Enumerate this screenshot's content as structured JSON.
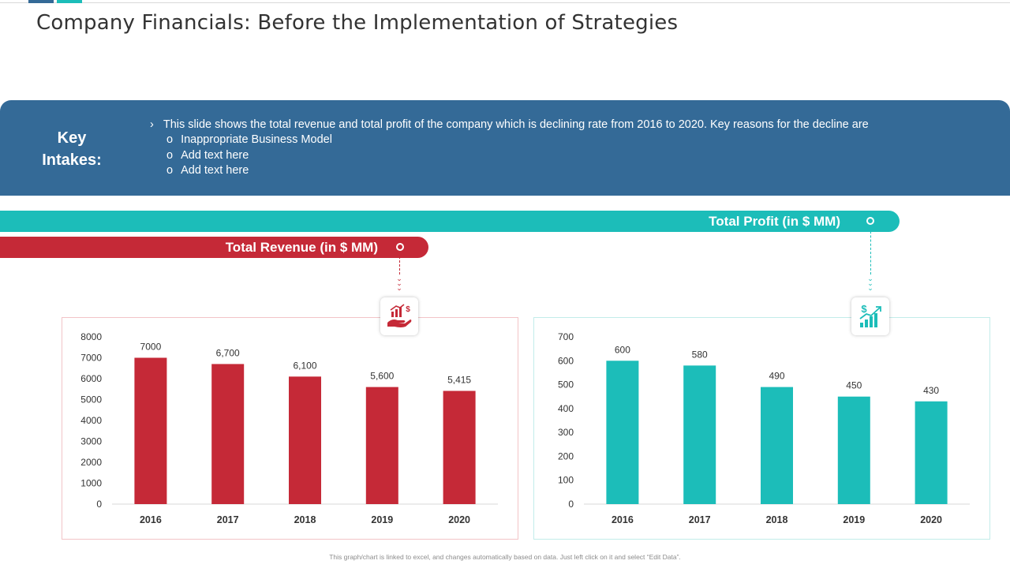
{
  "title": "Company Financials: Before the Implementation of Strategies",
  "key_intakes": {
    "heading_line1": "Key",
    "heading_line2": "Intakes:",
    "bullet_marker": "›",
    "sub_marker": "o",
    "main_point": "This slide shows the total revenue and total profit of the company which is declining rate from 2016 to 2020. Key reasons for the decline are",
    "sub_points": [
      "Inappropriate Business Model",
      "Add text here",
      "Add text here"
    ]
  },
  "bands": {
    "profit_label": "Total Profit (in $ MM)",
    "revenue_label": "Total Revenue (in $ MM)"
  },
  "colors": {
    "blue": "#346a97",
    "teal": "#1cbdb9",
    "red": "#c52937"
  },
  "icons": {
    "revenue": "hand-money-chart-icon",
    "profit": "dollar-growth-chart-icon"
  },
  "chart_data": [
    {
      "type": "bar",
      "title": "Total Revenue (in $ MM)",
      "categories": [
        "2016",
        "2017",
        "2018",
        "2019",
        "2020"
      ],
      "values": [
        7000,
        6700,
        6100,
        5600,
        5415
      ],
      "value_labels": [
        "7000",
        "6,700",
        "6,100",
        "5,600",
        "5,415"
      ],
      "ylim": [
        0,
        8000
      ],
      "yticks": [
        0,
        1000,
        2000,
        3000,
        4000,
        5000,
        6000,
        7000,
        8000
      ],
      "color": "#c52937",
      "xlabel": "",
      "ylabel": ""
    },
    {
      "type": "bar",
      "title": "Total Profit (in $ MM)",
      "categories": [
        "2016",
        "2017",
        "2018",
        "2019",
        "2020"
      ],
      "values": [
        600,
        580,
        490,
        450,
        430
      ],
      "value_labels": [
        "600",
        "580",
        "490",
        "450",
        "430"
      ],
      "ylim": [
        0,
        700
      ],
      "yticks": [
        0,
        100,
        200,
        300,
        400,
        500,
        600,
        700
      ],
      "color": "#1cbdb9",
      "xlabel": "",
      "ylabel": ""
    }
  ],
  "footnote": "This graph/chart is linked to excel, and changes automatically based on data. Just left click on it and select “Edit Data”."
}
